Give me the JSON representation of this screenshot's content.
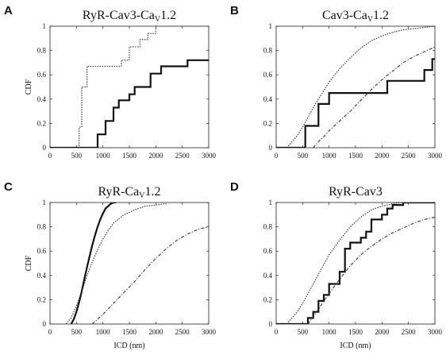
{
  "chart_data": [
    {
      "type": "line",
      "panel": "A",
      "title": "RyR-Cav3-Cav1.2",
      "title_main": "RyR-Cav3-Ca",
      "title_sub": "V",
      "title_tail": "1.2",
      "xlabel": "",
      "ylabel": "CDF",
      "xlim": [
        0,
        3000
      ],
      "ylim": [
        0,
        1
      ],
      "xticks": [
        0,
        500,
        1000,
        1500,
        2000,
        2500,
        3000
      ],
      "yticks": [
        0,
        0.2,
        0.4,
        0.6,
        0.8,
        1
      ],
      "series": [
        {
          "style": "solid",
          "x": [
            0,
            900,
            900,
            1050,
            1050,
            1200,
            1200,
            1300,
            1300,
            1500,
            1500,
            1600,
            1600,
            1900,
            1900,
            2100,
            2100,
            2600,
            2600,
            3000
          ],
          "y": [
            0,
            0,
            0.11,
            0.11,
            0.22,
            0.22,
            0.33,
            0.33,
            0.39,
            0.39,
            0.44,
            0.44,
            0.5,
            0.5,
            0.61,
            0.61,
            0.67,
            0.67,
            0.72,
            0.72
          ]
        },
        {
          "style": "dotted",
          "x": [
            0,
            550,
            550,
            600,
            600,
            700,
            700,
            750,
            750,
            1350,
            1350,
            1500,
            1500,
            1700,
            1700,
            1850,
            1850,
            2000,
            2000,
            3000
          ],
          "y": [
            0,
            0,
            0.17,
            0.17,
            0.5,
            0.5,
            0.67,
            0.67,
            0.67,
            0.67,
            0.72,
            0.72,
            0.83,
            0.83,
            0.89,
            0.89,
            0.94,
            0.94,
            1,
            1
          ]
        }
      ]
    },
    {
      "type": "line",
      "panel": "B",
      "title": "Cav3-Cav1.2",
      "title_main": "Cav3-Ca",
      "title_sub": "V",
      "title_tail": "1.2",
      "xlabel": "",
      "ylabel": "",
      "xlim": [
        0,
        3000
      ],
      "ylim": [
        0,
        1
      ],
      "xticks": [
        0,
        500,
        1000,
        1500,
        2000,
        2500,
        3000
      ],
      "yticks": [
        0,
        0.2,
        0.4,
        0.6,
        0.8,
        1
      ],
      "series": [
        {
          "style": "solid",
          "x": [
            0,
            550,
            550,
            800,
            800,
            1000,
            1000,
            1250,
            1250,
            2100,
            2100,
            2800,
            2800,
            2950,
            2950,
            3000
          ],
          "y": [
            0,
            0,
            0.18,
            0.18,
            0.36,
            0.36,
            0.45,
            0.45,
            0.45,
            0.45,
            0.55,
            0.55,
            0.64,
            0.64,
            0.73,
            0.73
          ]
        },
        {
          "style": "dotted",
          "x": [
            200,
            300,
            400,
            500,
            600,
            700,
            800,
            900,
            1000,
            1200,
            1400,
            1600,
            1800,
            2000,
            2200,
            2400,
            2600,
            2800,
            3000
          ],
          "y": [
            0,
            0.05,
            0.1,
            0.17,
            0.25,
            0.33,
            0.4,
            0.47,
            0.54,
            0.65,
            0.74,
            0.82,
            0.88,
            0.92,
            0.95,
            0.97,
            0.98,
            0.99,
            1
          ]
        },
        {
          "style": "dashdot",
          "x": [
            700,
            800,
            900,
            1000,
            1200,
            1400,
            1600,
            1800,
            2000,
            2200,
            2400,
            2600,
            2800,
            3000
          ],
          "y": [
            0,
            0.05,
            0.09,
            0.14,
            0.22,
            0.3,
            0.39,
            0.48,
            0.56,
            0.63,
            0.7,
            0.75,
            0.79,
            0.83
          ]
        }
      ]
    },
    {
      "type": "line",
      "panel": "C",
      "title": "RyR-Cav1.2",
      "title_main": "RyR-Ca",
      "title_sub": "V",
      "title_tail": "1.2",
      "xlabel": "ICD (nm)",
      "ylabel": "CDF",
      "xlim": [
        0,
        3000
      ],
      "ylim": [
        0,
        1
      ],
      "xticks": [
        0,
        500,
        1000,
        1500,
        2000,
        2500,
        3000
      ],
      "yticks": [
        0,
        0.2,
        0.4,
        0.6,
        0.8,
        1
      ],
      "series": [
        {
          "style": "solid",
          "x": [
            400,
            450,
            500,
            550,
            600,
            650,
            700,
            750,
            800,
            850,
            900,
            950,
            1000,
            1050,
            1100,
            1150,
            1200,
            1250
          ],
          "y": [
            0,
            0.04,
            0.1,
            0.18,
            0.27,
            0.37,
            0.47,
            0.56,
            0.65,
            0.73,
            0.8,
            0.86,
            0.91,
            0.95,
            0.97,
            0.99,
            1,
            1
          ]
        },
        {
          "style": "dotted",
          "x": [
            300,
            400,
            500,
            600,
            700,
            800,
            900,
            1000,
            1100,
            1200,
            1400,
            1600,
            1800,
            2000,
            2200
          ],
          "y": [
            0,
            0.05,
            0.15,
            0.27,
            0.4,
            0.51,
            0.61,
            0.7,
            0.77,
            0.83,
            0.9,
            0.94,
            0.97,
            0.98,
            0.99
          ]
        },
        {
          "style": "dashdot",
          "x": [
            800,
            900,
            1000,
            1200,
            1400,
            1600,
            1800,
            2000,
            2200,
            2400,
            2600,
            2800,
            3000
          ],
          "y": [
            0,
            0.04,
            0.08,
            0.17,
            0.26,
            0.35,
            0.45,
            0.54,
            0.62,
            0.69,
            0.74,
            0.78,
            0.8
          ]
        }
      ]
    },
    {
      "type": "line",
      "panel": "D",
      "title": "RyR-Cav3",
      "title_main": "RyR-Cav3",
      "title_sub": "",
      "title_tail": "",
      "xlabel": "ICD (nm)",
      "ylabel": "",
      "xlim": [
        0,
        3000
      ],
      "ylim": [
        0,
        1
      ],
      "xticks": [
        0,
        500,
        1000,
        1500,
        2000,
        2500,
        3000
      ],
      "yticks": [
        0,
        0.2,
        0.4,
        0.6,
        0.8,
        1
      ],
      "series": [
        {
          "style": "solid",
          "x": [
            0,
            600,
            600,
            700,
            700,
            800,
            800,
            900,
            900,
            1000,
            1000,
            1200,
            1200,
            1300,
            1300,
            1400,
            1400,
            1600,
            1600,
            1700,
            1700,
            1800,
            1800,
            2000,
            2000,
            2100,
            2100,
            2200,
            2200,
            2400,
            2400,
            3000
          ],
          "y": [
            0,
            0,
            0.05,
            0.05,
            0.1,
            0.1,
            0.19,
            0.19,
            0.24,
            0.24,
            0.33,
            0.33,
            0.43,
            0.43,
            0.62,
            0.62,
            0.67,
            0.67,
            0.71,
            0.71,
            0.76,
            0.76,
            0.86,
            0.86,
            0.9,
            0.9,
            0.95,
            0.95,
            0.98,
            0.98,
            1,
            1
          ]
        },
        {
          "style": "dotted",
          "x": [
            200,
            300,
            400,
            500,
            600,
            700,
            800,
            900,
            1000,
            1200,
            1400,
            1600,
            1800,
            2000,
            2200,
            2400
          ],
          "y": [
            0,
            0.05,
            0.1,
            0.17,
            0.25,
            0.33,
            0.41,
            0.49,
            0.57,
            0.69,
            0.8,
            0.88,
            0.94,
            0.97,
            0.99,
            1
          ]
        },
        {
          "style": "dashdot",
          "x": [
            600,
            700,
            800,
            900,
            1000,
            1200,
            1400,
            1600,
            1800,
            2000,
            2200,
            2400,
            2600,
            2800,
            3000
          ],
          "y": [
            0,
            0.06,
            0.12,
            0.19,
            0.25,
            0.37,
            0.48,
            0.57,
            0.64,
            0.7,
            0.75,
            0.79,
            0.83,
            0.86,
            0.88
          ]
        }
      ]
    }
  ]
}
